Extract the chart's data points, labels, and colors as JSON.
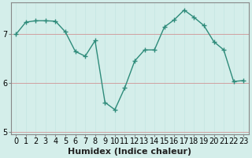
{
  "x": [
    0,
    1,
    2,
    3,
    4,
    5,
    6,
    7,
    8,
    9,
    10,
    11,
    12,
    13,
    14,
    15,
    16,
    17,
    18,
    19,
    20,
    21,
    22,
    23
  ],
  "y": [
    7.0,
    7.25,
    7.28,
    7.28,
    7.27,
    7.05,
    6.65,
    6.55,
    6.87,
    5.6,
    5.45,
    5.9,
    6.45,
    6.68,
    6.68,
    7.15,
    7.3,
    7.5,
    7.35,
    7.18,
    6.85,
    6.68,
    6.03,
    6.05
  ],
  "line_color": "#2e8b7a",
  "marker": "+",
  "marker_size": 4,
  "bg_color": "#d4eeea",
  "grid_color_v": "#c8e8e4",
  "grid_color_h": "#c8b8b8",
  "xlabel": "Humidex (Indice chaleur)",
  "xlim": [
    -0.5,
    23.5
  ],
  "ylim": [
    4.95,
    7.65
  ],
  "yticks": [
    5,
    6,
    7
  ],
  "xtick_labels": [
    "0",
    "1",
    "2",
    "3",
    "4",
    "5",
    "6",
    "7",
    "8",
    "9",
    "10",
    "11",
    "12",
    "13",
    "14",
    "15",
    "16",
    "17",
    "18",
    "19",
    "20",
    "21",
    "22",
    "23"
  ],
  "tick_fontsize": 7,
  "xlabel_fontsize": 8,
  "spine_color": "#888888"
}
